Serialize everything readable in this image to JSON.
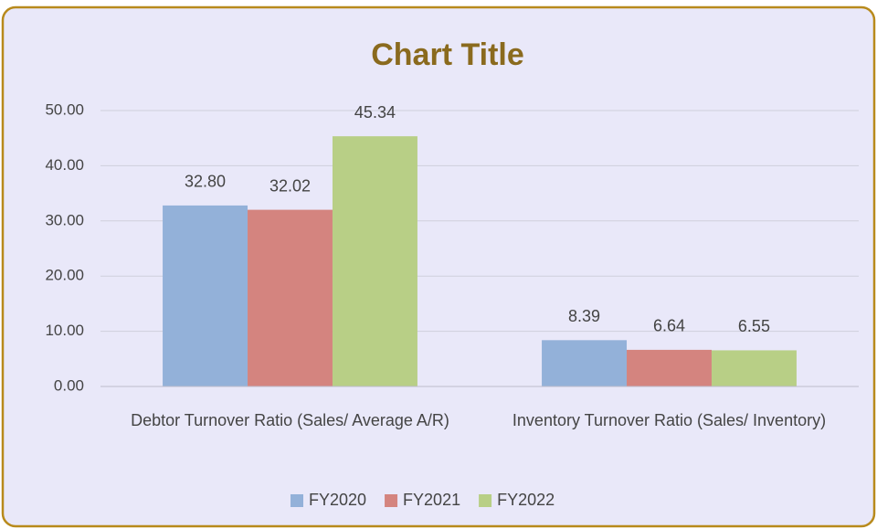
{
  "chart_data": {
    "type": "bar",
    "title": "Chart Title",
    "categories": [
      "Debtor Turnover Ratio (Sales/ Average A/R)",
      "Inventory Turnover Ratio (Sales/ Inventory)"
    ],
    "series": [
      {
        "name": "FY2020",
        "color": "#93b1d9",
        "values": [
          32.8,
          8.39
        ],
        "value_labels": [
          "32.80",
          "8.39"
        ]
      },
      {
        "name": "FY2021",
        "color": "#d4847f",
        "values": [
          32.02,
          6.64
        ],
        "value_labels": [
          "32.02",
          "6.64"
        ]
      },
      {
        "name": "FY2022",
        "color": "#b8cf86",
        "values": [
          45.34,
          6.55
        ],
        "value_labels": [
          "45.34",
          "6.55"
        ]
      }
    ],
    "ylim": [
      0,
      50
    ],
    "yticks": [
      {
        "value": 0,
        "label": "0.00"
      },
      {
        "value": 10,
        "label": "10.00"
      },
      {
        "value": 20,
        "label": "20.00"
      },
      {
        "value": 30,
        "label": "30.00"
      },
      {
        "value": 40,
        "label": "40.00"
      },
      {
        "value": 50,
        "label": "50.00"
      }
    ],
    "grid": true,
    "legend": "bottom"
  }
}
